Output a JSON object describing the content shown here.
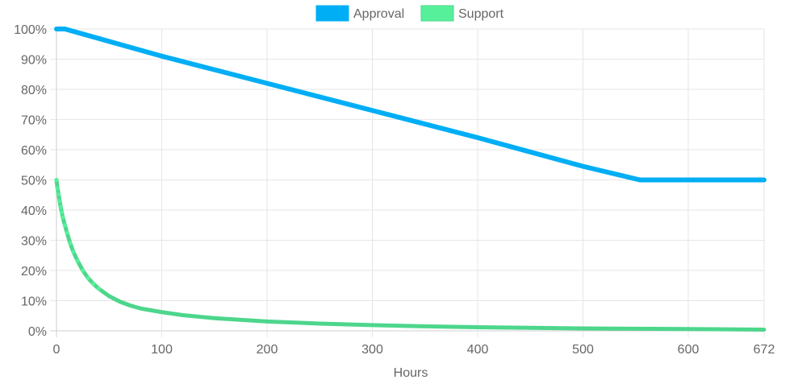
{
  "chart_data": {
    "type": "line",
    "title": "",
    "xlabel": "Hours",
    "ylabel": "",
    "xlim": [
      0,
      672
    ],
    "ylim": [
      0,
      100
    ],
    "x_ticks": [
      0,
      100,
      200,
      300,
      400,
      500,
      600,
      672
    ],
    "y_ticks": [
      0,
      10,
      20,
      30,
      40,
      50,
      60,
      70,
      80,
      90,
      100
    ],
    "y_tick_format": "percent",
    "grid": true,
    "legend_position": "top-center",
    "series": [
      {
        "name": "Approval",
        "color": "#00aef5",
        "fill": "#00aef5",
        "points": [
          {
            "x": 0,
            "y": 100
          },
          {
            "x": 8,
            "y": 100
          },
          {
            "x": 100,
            "y": 91.0
          },
          {
            "x": 200,
            "y": 82.0
          },
          {
            "x": 300,
            "y": 73.0
          },
          {
            "x": 400,
            "y": 64.0
          },
          {
            "x": 500,
            "y": 54.5
          },
          {
            "x": 554,
            "y": 50
          },
          {
            "x": 600,
            "y": 50
          },
          {
            "x": 672,
            "y": 50
          }
        ]
      },
      {
        "name": "Support",
        "color": "#4dd68c",
        "fill": "#56f09a",
        "points": [
          {
            "x": 0,
            "y": 50
          },
          {
            "x": 1,
            "y": 47.2
          },
          {
            "x": 2,
            "y": 45.2
          },
          {
            "x": 3,
            "y": 43.0
          },
          {
            "x": 4,
            "y": 41.0
          },
          {
            "x": 5,
            "y": 39.3
          },
          {
            "x": 6,
            "y": 37.6
          },
          {
            "x": 8,
            "y": 35.0
          },
          {
            "x": 10,
            "y": 32.5
          },
          {
            "x": 13,
            "y": 29.0
          },
          {
            "x": 16,
            "y": 26.2
          },
          {
            "x": 20,
            "y": 23.2
          },
          {
            "x": 25,
            "y": 20.0
          },
          {
            "x": 30,
            "y": 17.5
          },
          {
            "x": 35,
            "y": 15.6
          },
          {
            "x": 40,
            "y": 14.0
          },
          {
            "x": 50,
            "y": 11.5
          },
          {
            "x": 60,
            "y": 9.7
          },
          {
            "x": 70,
            "y": 8.4
          },
          {
            "x": 80,
            "y": 7.4
          },
          {
            "x": 100,
            "y": 6.2
          },
          {
            "x": 120,
            "y": 5.2
          },
          {
            "x": 150,
            "y": 4.2
          },
          {
            "x": 200,
            "y": 3.1
          },
          {
            "x": 250,
            "y": 2.4
          },
          {
            "x": 300,
            "y": 1.9
          },
          {
            "x": 350,
            "y": 1.5
          },
          {
            "x": 400,
            "y": 1.2
          },
          {
            "x": 450,
            "y": 1.0
          },
          {
            "x": 500,
            "y": 0.8
          },
          {
            "x": 550,
            "y": 0.7
          },
          {
            "x": 600,
            "y": 0.6
          },
          {
            "x": 672,
            "y": 0.4
          }
        ]
      }
    ]
  }
}
